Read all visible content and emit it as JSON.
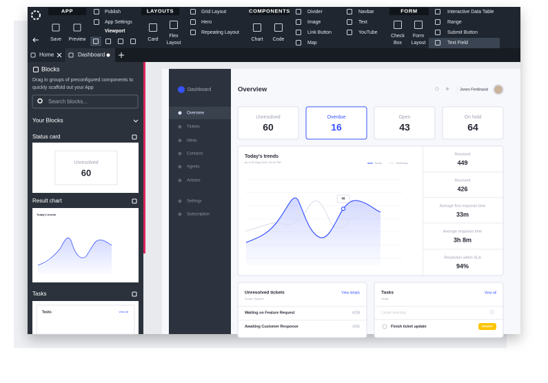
{
  "toolbar": {
    "app": {
      "label": "APP",
      "save": "Save",
      "preview": "Preview",
      "publish": "Publish",
      "settings": "App Settings",
      "viewport": "Viewport"
    },
    "layouts": {
      "label": "LAYOUTS",
      "card": "Card",
      "flex": "Flex Layout",
      "list": [
        "Grid Layout",
        "Hero",
        "Repeating Layout"
      ]
    },
    "components": {
      "label": "COMPONENTS",
      "chart": "Chart",
      "code": "Code",
      "list": [
        "Divider",
        "Image",
        "Link Button",
        "Map"
      ],
      "list2": [
        "Navbar",
        "Text",
        "YouTube"
      ]
    },
    "form": {
      "label": "FORM",
      "check": "Check Box",
      "layout": "Form Layout",
      "list": [
        "Interactive Data Table",
        "Range",
        "Submit Button",
        "Text Field"
      ]
    }
  },
  "tabs": [
    "Home",
    "Dashboard"
  ],
  "sidebar": {
    "title": "Blocks",
    "description": [
      "Drag in groups of preconfigured components to",
      "quickly scaffold out your App"
    ],
    "search": "Search blocks...",
    "section": "Your Blocks",
    "blocks": [
      {
        "name": "Status card",
        "label": "Unresolved",
        "value": 60
      },
      {
        "name": "Result chart",
        "label": "Today's trends"
      },
      {
        "name": "Tasks",
        "label": "Tasks",
        "link": "View all"
      }
    ]
  },
  "dashboard": {
    "brand": "Dashboard",
    "nav": [
      "Overview",
      "Tickets",
      "Ideas",
      "Contacts",
      "Agents",
      "Articles",
      "Settings",
      "Subscription"
    ],
    "heading": "Overview",
    "user": "Jones Ferdinand",
    "stats": [
      {
        "label": "Unresolved",
        "value": 60
      },
      {
        "label": "Overdue",
        "value": 16
      },
      {
        "label": "Open",
        "value": 43
      },
      {
        "label": "On hold",
        "value": 64
      }
    ],
    "trends": {
      "title": "Today's trends",
      "subtitle": "as of 25 May 2019, 09:41 PM",
      "legend": [
        "Today",
        "Yesterday"
      ],
      "marker": "58"
    },
    "side_stats": [
      {
        "label": "Resolved",
        "value": "449"
      },
      {
        "label": "Received",
        "value": "426"
      },
      {
        "label": "Average first response time",
        "value": "33m"
      },
      {
        "label": "Average response time",
        "value": "3h 8m"
      },
      {
        "label": "Resolution within SLA",
        "value": "94%"
      }
    ],
    "tickets": {
      "title": "Unresolved tickets",
      "group": "Group: Support",
      "link": "View details",
      "rows": [
        [
          "Waiting on Feature Request",
          "4238"
        ],
        [
          "Awaiting Customer Response",
          "1005"
        ]
      ]
    },
    "tasks": {
      "title": "Tasks",
      "subtitle": "Today",
      "link": "View all",
      "placeholder": "Create new task",
      "items": [
        {
          "text": "Finish ticket update",
          "tag": "URGENT"
        }
      ]
    }
  }
}
